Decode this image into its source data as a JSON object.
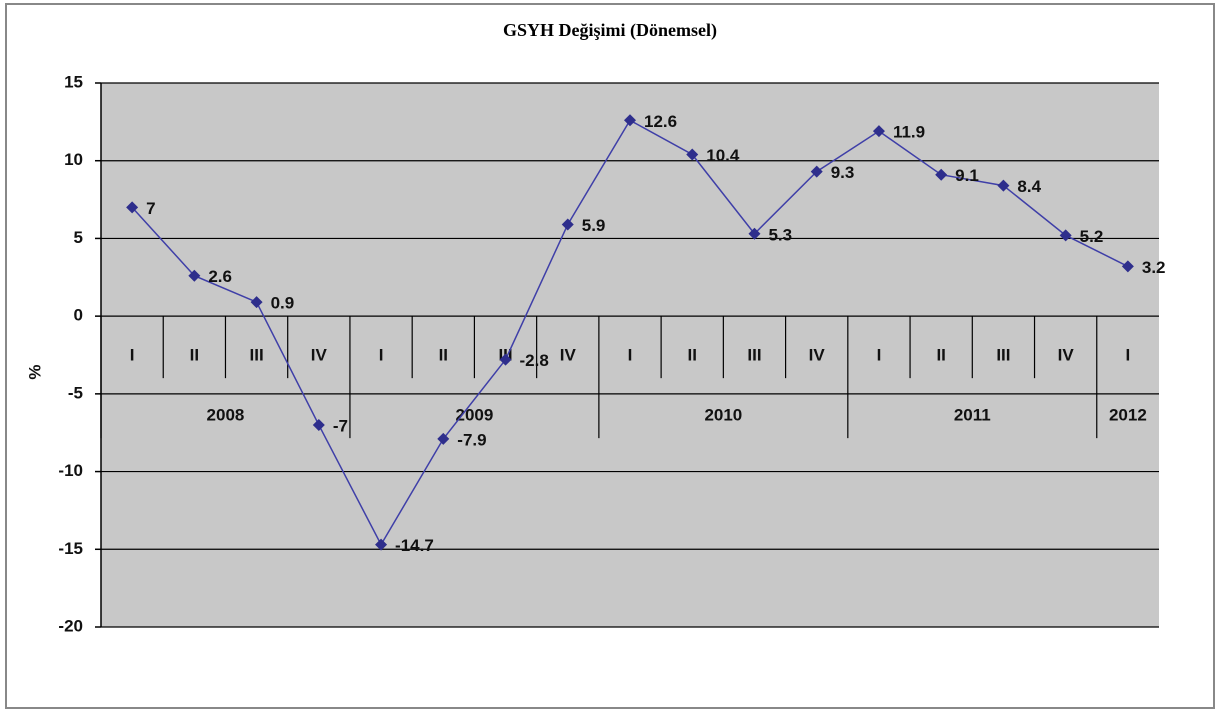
{
  "chart_data": {
    "type": "line",
    "title": "GSYH Değişimi (Dönemsel)",
    "y_label": "%",
    "groups": [
      {
        "name": "2008",
        "categories": [
          "I",
          "II",
          "III",
          "IV"
        ]
      },
      {
        "name": "2009",
        "categories": [
          "I",
          "II",
          "III",
          "IV"
        ]
      },
      {
        "name": "2010",
        "categories": [
          "I",
          "II",
          "III",
          "IV"
        ]
      },
      {
        "name": "2011",
        "categories": [
          "I",
          "II",
          "III",
          "IV"
        ]
      },
      {
        "name": "2012",
        "categories": [
          "I"
        ]
      }
    ],
    "values": [
      7,
      2.6,
      0.9,
      -7,
      -14.7,
      -7.9,
      -2.8,
      5.9,
      12.6,
      10.4,
      5.3,
      9.3,
      11.9,
      9.1,
      8.4,
      5.2,
      3.2
    ],
    "color": "#3f3fa8",
    "marker_color": "#2e2e8c",
    "ylim": [
      -20,
      15
    ],
    "yticks": [
      -20,
      -15,
      -10,
      -5,
      0,
      5,
      10,
      15
    ],
    "grid": true
  }
}
